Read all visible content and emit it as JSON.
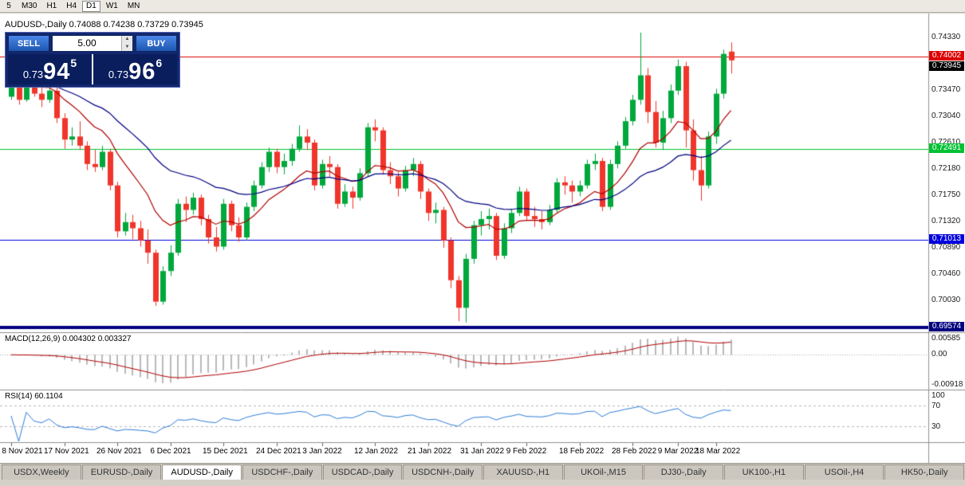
{
  "toolbar": {
    "timeframes": [
      "5",
      "M30",
      "H1",
      "H4",
      "D1",
      "W1",
      "MN"
    ],
    "active_timeframe": "D1"
  },
  "chart": {
    "symbol_info": "AUDUSD-,Daily 0.74088 0.74238 0.73729 0.73945",
    "macd_label": "MACD(12,26,9) 0.004302 0.003327",
    "rsi_label": "RSI(14) 60.1104"
  },
  "trade_panel": {
    "sell_label": "SELL",
    "buy_label": "BUY",
    "lot": "5.00",
    "sell_price": {
      "prefix": "0.73",
      "big": "94",
      "sup": "5"
    },
    "buy_price": {
      "prefix": "0.73",
      "big": "96",
      "sup": "6"
    }
  },
  "price_axis": {
    "ticks": [
      0.7433,
      0.7347,
      0.7304,
      0.7261,
      0.7218,
      0.7175,
      0.7132,
      0.7089,
      0.7046,
      0.7003
    ],
    "badges": [
      {
        "value": "0.74002",
        "bg": "#dd0000",
        "fg": "#ffffff"
      },
      {
        "value": "0.73945",
        "bg": "#000000",
        "fg": "#ffffff"
      },
      {
        "value": "0.72491",
        "bg": "#00c232",
        "fg": "#ffffff"
      },
      {
        "value": "0.71013",
        "bg": "#0000dd",
        "fg": "#ffffff"
      },
      {
        "value": "0.69574",
        "bg": "#000080",
        "fg": "#ffffff"
      }
    ]
  },
  "macd_axis": [
    "0.00585",
    "0.00",
    "-0.00918"
  ],
  "rsi_axis": [
    "100",
    "70",
    "30"
  ],
  "date_axis": {
    "labels": [
      "8 Nov 2021",
      "17 Nov 2021",
      "26 Nov 2021",
      "6 Dec 2021",
      "15 Dec 2021",
      "24 Dec 2021",
      "3 Jan 2022",
      "12 Jan 2022",
      "21 Jan 2022",
      "31 Jan 2022",
      "9 Feb 2022",
      "18 Feb 2022",
      "28 Feb 2022",
      "9 Mar 2022",
      "18 Mar 2022"
    ],
    "indices": [
      0,
      7,
      14,
      21,
      28,
      35,
      41,
      48,
      55,
      62,
      68,
      75,
      82,
      88,
      93
    ]
  },
  "tabs": {
    "active_index": 2,
    "items": [
      "USDX,Weekly",
      "EURUSD-,Daily",
      "AUDUSD-,Daily",
      "USDCHF-,Daily",
      "USDCAD-,Daily",
      "USDCNH-,Daily",
      "XAUUSD-,H1",
      "UKOil-,M15",
      "DJ30-,Daily",
      "UK100-,H1",
      "USOil-,H4",
      "HK50-,Daily"
    ]
  },
  "chart_data": {
    "type": "candlestick",
    "symbol": "AUDUSD-",
    "timeframe": "Daily",
    "last_ohlc": {
      "open": 0.74088,
      "high": 0.74238,
      "low": 0.73729,
      "close": 0.73945
    },
    "bid": 0.73945,
    "ask": 0.73966,
    "ylim": [
      0.695,
      0.7471
    ],
    "colors": {
      "up": "#00a83c",
      "down": "#f0352b",
      "macd_bar": "#b9b9b9",
      "macd_signal": "#b00000",
      "rsi_line": "#2f7ed8",
      "level_dash": "#b8b8b8"
    },
    "hlines": [
      {
        "price": 0.74002,
        "color": "#dd0000",
        "width": 1
      },
      {
        "price": 0.72491,
        "color": "#00c232",
        "width": 1
      },
      {
        "price": 0.71013,
        "color": "#0000dd",
        "width": 1
      },
      {
        "price": 0.69574,
        "color": "#000080",
        "width": 4
      }
    ],
    "overlays": [
      {
        "name": "ma-fast",
        "type": "ema",
        "period": 12,
        "color": "#b00000"
      },
      {
        "name": "ma-slow",
        "type": "ema",
        "period": 30,
        "color": "#000080"
      }
    ],
    "indicators": [
      {
        "name": "MACD",
        "params": [
          12,
          26,
          9
        ],
        "current": [
          0.004302,
          0.003327
        ],
        "range": [
          -0.00918,
          0.00585
        ]
      },
      {
        "name": "RSI",
        "params": [
          14
        ],
        "current": 60.1104,
        "levels": [
          70,
          30
        ],
        "range": [
          0,
          100
        ]
      }
    ],
    "candles": [
      [
        0.7335,
        0.7375,
        0.733,
        0.736
      ],
      [
        0.736,
        0.7372,
        0.7322,
        0.733
      ],
      [
        0.733,
        0.7378,
        0.7327,
        0.737
      ],
      [
        0.737,
        0.739,
        0.7335,
        0.734
      ],
      [
        0.734,
        0.7352,
        0.7318,
        0.733
      ],
      [
        0.733,
        0.7355,
        0.7325,
        0.7345
      ],
      [
        0.7345,
        0.735,
        0.7292,
        0.73
      ],
      [
        0.73,
        0.7308,
        0.725,
        0.7265
      ],
      [
        0.7265,
        0.7285,
        0.7255,
        0.727
      ],
      [
        0.727,
        0.7295,
        0.7248,
        0.7255
      ],
      [
        0.7255,
        0.7262,
        0.7215,
        0.7225
      ],
      [
        0.7225,
        0.7248,
        0.7212,
        0.722
      ],
      [
        0.722,
        0.7255,
        0.7215,
        0.7245
      ],
      [
        0.7245,
        0.725,
        0.7182,
        0.719
      ],
      [
        0.719,
        0.7196,
        0.7105,
        0.7115
      ],
      [
        0.7115,
        0.7145,
        0.7108,
        0.713
      ],
      [
        0.713,
        0.7142,
        0.7102,
        0.712
      ],
      [
        0.712,
        0.7132,
        0.709,
        0.71
      ],
      [
        0.71,
        0.7118,
        0.7062,
        0.708
      ],
      [
        0.708,
        0.7085,
        0.6993,
        0.7
      ],
      [
        0.7,
        0.7058,
        0.6995,
        0.705
      ],
      [
        0.705,
        0.7092,
        0.7042,
        0.708
      ],
      [
        0.708,
        0.7168,
        0.7075,
        0.716
      ],
      [
        0.716,
        0.7172,
        0.713,
        0.715
      ],
      [
        0.715,
        0.7178,
        0.7142,
        0.717
      ],
      [
        0.717,
        0.7175,
        0.7125,
        0.7135
      ],
      [
        0.7135,
        0.7142,
        0.7095,
        0.7105
      ],
      [
        0.7105,
        0.7122,
        0.7082,
        0.709
      ],
      [
        0.709,
        0.7168,
        0.7085,
        0.716
      ],
      [
        0.716,
        0.7165,
        0.7115,
        0.7125
      ],
      [
        0.7125,
        0.7138,
        0.7098,
        0.7105
      ],
      [
        0.7105,
        0.7162,
        0.71,
        0.7155
      ],
      [
        0.7155,
        0.7198,
        0.7148,
        0.719
      ],
      [
        0.719,
        0.7228,
        0.7185,
        0.722
      ],
      [
        0.722,
        0.7252,
        0.7212,
        0.7245
      ],
      [
        0.7245,
        0.725,
        0.721,
        0.722
      ],
      [
        0.722,
        0.7242,
        0.7208,
        0.723
      ],
      [
        0.723,
        0.7258,
        0.7222,
        0.725
      ],
      [
        0.725,
        0.7288,
        0.7245,
        0.727
      ],
      [
        0.727,
        0.7282,
        0.7248,
        0.726
      ],
      [
        0.726,
        0.7265,
        0.7182,
        0.719
      ],
      [
        0.719,
        0.7232,
        0.7185,
        0.7225
      ],
      [
        0.7225,
        0.7238,
        0.7205,
        0.722
      ],
      [
        0.722,
        0.7225,
        0.7152,
        0.716
      ],
      [
        0.716,
        0.7192,
        0.7155,
        0.718
      ],
      [
        0.718,
        0.7188,
        0.7152,
        0.717
      ],
      [
        0.717,
        0.7218,
        0.7165,
        0.721
      ],
      [
        0.721,
        0.7292,
        0.7205,
        0.7285
      ],
      [
        0.7285,
        0.7298,
        0.7262,
        0.728
      ],
      [
        0.728,
        0.7285,
        0.7208,
        0.7215
      ],
      [
        0.7215,
        0.7228,
        0.7192,
        0.7205
      ],
      [
        0.7205,
        0.7212,
        0.7172,
        0.7185
      ],
      [
        0.7185,
        0.7222,
        0.718,
        0.7215
      ],
      [
        0.7215,
        0.7235,
        0.7205,
        0.7225
      ],
      [
        0.7225,
        0.723,
        0.7168,
        0.718
      ],
      [
        0.718,
        0.7185,
        0.7132,
        0.7145
      ],
      [
        0.7145,
        0.7162,
        0.7128,
        0.715
      ],
      [
        0.715,
        0.7155,
        0.7088,
        0.71
      ],
      [
        0.71,
        0.7105,
        0.7022,
        0.7035
      ],
      [
        0.7035,
        0.7042,
        0.6968,
        0.699
      ],
      [
        0.699,
        0.7078,
        0.6966,
        0.707
      ],
      [
        0.707,
        0.7132,
        0.7062,
        0.7125
      ],
      [
        0.7125,
        0.7148,
        0.7108,
        0.7135
      ],
      [
        0.7135,
        0.7152,
        0.7118,
        0.714
      ],
      [
        0.714,
        0.7145,
        0.7068,
        0.7075
      ],
      [
        0.7075,
        0.7128,
        0.707,
        0.712
      ],
      [
        0.712,
        0.7152,
        0.7112,
        0.7145
      ],
      [
        0.7145,
        0.7188,
        0.714,
        0.718
      ],
      [
        0.718,
        0.7185,
        0.7132,
        0.714
      ],
      [
        0.714,
        0.7155,
        0.7122,
        0.7135
      ],
      [
        0.7135,
        0.7148,
        0.7118,
        0.713
      ],
      [
        0.713,
        0.7158,
        0.7125,
        0.715
      ],
      [
        0.715,
        0.7202,
        0.7145,
        0.7195
      ],
      [
        0.7195,
        0.7205,
        0.7175,
        0.719
      ],
      [
        0.719,
        0.7198,
        0.7162,
        0.718
      ],
      [
        0.718,
        0.7198,
        0.7172,
        0.719
      ],
      [
        0.719,
        0.7232,
        0.7185,
        0.7225
      ],
      [
        0.7225,
        0.7242,
        0.7215,
        0.723
      ],
      [
        0.723,
        0.7235,
        0.7148,
        0.7155
      ],
      [
        0.7155,
        0.7232,
        0.715,
        0.7225
      ],
      [
        0.7225,
        0.7262,
        0.7218,
        0.7255
      ],
      [
        0.7255,
        0.7302,
        0.725,
        0.7295
      ],
      [
        0.7295,
        0.7338,
        0.7288,
        0.733
      ],
      [
        0.733,
        0.744,
        0.7322,
        0.737
      ],
      [
        0.737,
        0.7382,
        0.7292,
        0.731
      ],
      [
        0.731,
        0.7328,
        0.7252,
        0.726
      ],
      [
        0.726,
        0.7312,
        0.7248,
        0.73
      ],
      [
        0.73,
        0.7355,
        0.7292,
        0.7345
      ],
      [
        0.7345,
        0.7396,
        0.7338,
        0.7385
      ],
      [
        0.7385,
        0.7392,
        0.7252,
        0.728
      ],
      [
        0.728,
        0.7298,
        0.7198,
        0.7215
      ],
      [
        0.7215,
        0.7238,
        0.7165,
        0.719
      ],
      [
        0.719,
        0.7278,
        0.7185,
        0.727
      ],
      [
        0.727,
        0.7348,
        0.7258,
        0.734
      ],
      [
        0.734,
        0.7412,
        0.7332,
        0.7405
      ],
      [
        0.74088,
        0.74238,
        0.73729,
        0.73945
      ]
    ]
  }
}
